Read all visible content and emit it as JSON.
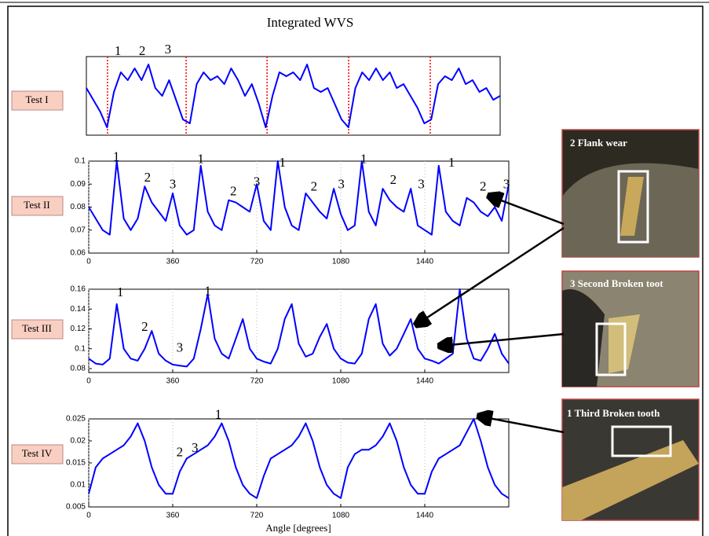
{
  "title": "Integrated WVS",
  "xlabel": "Angle [degrees]",
  "photos": [
    {
      "caption": "2 Flank wear"
    },
    {
      "caption": "3 Second Broken toot"
    },
    {
      "caption": "1 Third Broken tooth"
    }
  ],
  "chart_data": [
    {
      "type": "line",
      "label": "Test I",
      "color": "#0000ff",
      "xlim": [
        0,
        1800
      ],
      "ylim": [
        0,
        1
      ],
      "vlines": [
        92,
        434,
        786,
        1141,
        1496
      ],
      "vline_color": "#ff0000",
      "x": [
        0,
        30,
        60,
        90,
        120,
        150,
        180,
        210,
        240,
        270,
        300,
        330,
        360,
        390,
        420,
        450,
        480,
        510,
        540,
        570,
        600,
        630,
        660,
        690,
        720,
        750,
        780,
        810,
        840,
        870,
        900,
        930,
        960,
        990,
        1020,
        1050,
        1080,
        1110,
        1140,
        1170,
        1200,
        1230,
        1260,
        1290,
        1320,
        1350,
        1380,
        1410,
        1440,
        1470,
        1500,
        1530,
        1560,
        1590,
        1620,
        1650,
        1680,
        1710,
        1740,
        1770,
        1800
      ],
      "values": [
        0.6,
        0.45,
        0.3,
        0.1,
        0.55,
        0.8,
        0.7,
        0.85,
        0.7,
        0.9,
        0.6,
        0.5,
        0.7,
        0.45,
        0.2,
        0.15,
        0.65,
        0.8,
        0.7,
        0.75,
        0.65,
        0.85,
        0.7,
        0.5,
        0.65,
        0.4,
        0.1,
        0.5,
        0.8,
        0.75,
        0.8,
        0.7,
        0.9,
        0.6,
        0.55,
        0.6,
        0.4,
        0.2,
        0.1,
        0.6,
        0.8,
        0.7,
        0.85,
        0.7,
        0.8,
        0.6,
        0.65,
        0.5,
        0.35,
        0.15,
        0.2,
        0.65,
        0.75,
        0.7,
        0.85,
        0.65,
        0.7,
        0.55,
        0.6,
        0.45,
        0.5
      ],
      "annotations": [
        {
          "text": "1",
          "x": 137,
          "y": 1.06
        },
        {
          "text": "2",
          "x": 243,
          "y": 1.06
        },
        {
          "text": "3",
          "x": 355,
          "y": 1.08
        }
      ]
    },
    {
      "type": "line",
      "label": "Test II",
      "color": "#0000ff",
      "xlim": [
        0,
        1800
      ],
      "ylim": [
        0.06,
        0.1
      ],
      "xticks": [
        0,
        360,
        720,
        1080,
        1440
      ],
      "yticks": [
        0.06,
        0.07,
        0.08,
        0.09,
        0.1
      ],
      "grid": true,
      "x": [
        0,
        30,
        60,
        90,
        120,
        150,
        180,
        210,
        240,
        270,
        300,
        330,
        360,
        390,
        420,
        450,
        480,
        510,
        540,
        570,
        600,
        630,
        660,
        690,
        720,
        750,
        780,
        810,
        840,
        870,
        900,
        930,
        960,
        990,
        1020,
        1050,
        1080,
        1110,
        1140,
        1170,
        1200,
        1230,
        1260,
        1290,
        1320,
        1350,
        1380,
        1410,
        1440,
        1470,
        1500,
        1530,
        1560,
        1590,
        1620,
        1650,
        1680,
        1710,
        1740,
        1770,
        1800
      ],
      "values": [
        0.08,
        0.075,
        0.07,
        0.068,
        0.1,
        0.075,
        0.07,
        0.075,
        0.089,
        0.082,
        0.078,
        0.074,
        0.086,
        0.072,
        0.068,
        0.07,
        0.098,
        0.078,
        0.072,
        0.07,
        0.083,
        0.082,
        0.08,
        0.078,
        0.09,
        0.074,
        0.07,
        0.1,
        0.08,
        0.072,
        0.07,
        0.086,
        0.082,
        0.078,
        0.075,
        0.088,
        0.077,
        0.07,
        0.072,
        0.1,
        0.078,
        0.072,
        0.088,
        0.083,
        0.08,
        0.078,
        0.088,
        0.072,
        0.07,
        0.068,
        0.098,
        0.078,
        0.074,
        0.072,
        0.084,
        0.082,
        0.078,
        0.076,
        0.08,
        0.074,
        0.09
      ],
      "annotations": [
        {
          "text": "1",
          "x": 118,
          "y": 0.1015
        },
        {
          "text": "2",
          "x": 252,
          "y": 0.0925
        },
        {
          "text": "3",
          "x": 360,
          "y": 0.0895
        },
        {
          "text": "1",
          "x": 480,
          "y": 0.1005
        },
        {
          "text": "2",
          "x": 620,
          "y": 0.0865
        },
        {
          "text": "3",
          "x": 720,
          "y": 0.0905
        },
        {
          "text": "1",
          "x": 830,
          "y": 0.099
        },
        {
          "text": "2",
          "x": 965,
          "y": 0.0885
        },
        {
          "text": "3",
          "x": 1082,
          "y": 0.0895
        },
        {
          "text": "1",
          "x": 1178,
          "y": 0.1005
        },
        {
          "text": "2",
          "x": 1305,
          "y": 0.0915
        },
        {
          "text": "3",
          "x": 1425,
          "y": 0.0895
        },
        {
          "text": "1",
          "x": 1555,
          "y": 0.099
        },
        {
          "text": "2",
          "x": 1690,
          "y": 0.0885
        },
        {
          "text": "3",
          "x": 1790,
          "y": 0.0895
        }
      ]
    },
    {
      "type": "line",
      "label": "Test III",
      "color": "#0000ff",
      "xlim": [
        0,
        1800
      ],
      "ylim": [
        0.076,
        0.16
      ],
      "xticks": [
        0,
        360,
        720,
        1080,
        1440
      ],
      "yticks": [
        0.08,
        0.1,
        0.12,
        0.14,
        0.16
      ],
      "grid": true,
      "x": [
        0,
        30,
        60,
        90,
        120,
        150,
        180,
        210,
        240,
        270,
        300,
        330,
        360,
        390,
        420,
        450,
        480,
        510,
        540,
        570,
        600,
        630,
        660,
        690,
        720,
        750,
        780,
        810,
        840,
        870,
        900,
        930,
        960,
        990,
        1020,
        1050,
        1080,
        1110,
        1140,
        1170,
        1200,
        1230,
        1260,
        1290,
        1320,
        1350,
        1380,
        1410,
        1440,
        1470,
        1500,
        1530,
        1560,
        1590,
        1620,
        1650,
        1680,
        1710,
        1740,
        1770,
        1800
      ],
      "values": [
        0.09,
        0.085,
        0.084,
        0.09,
        0.145,
        0.1,
        0.09,
        0.088,
        0.1,
        0.118,
        0.095,
        0.088,
        0.084,
        0.083,
        0.082,
        0.09,
        0.12,
        0.155,
        0.11,
        0.095,
        0.09,
        0.11,
        0.13,
        0.1,
        0.09,
        0.087,
        0.085,
        0.1,
        0.13,
        0.145,
        0.105,
        0.092,
        0.095,
        0.112,
        0.125,
        0.1,
        0.09,
        0.086,
        0.085,
        0.095,
        0.13,
        0.145,
        0.105,
        0.093,
        0.1,
        0.115,
        0.13,
        0.1,
        0.09,
        0.088,
        0.085,
        0.09,
        0.095,
        0.16,
        0.11,
        0.09,
        0.088,
        0.1,
        0.115,
        0.095,
        0.085
      ],
      "annotations": [
        {
          "text": "1",
          "x": 135,
          "y": 0.156
        },
        {
          "text": "2",
          "x": 240,
          "y": 0.121
        },
        {
          "text": "3",
          "x": 390,
          "y": 0.1
        },
        {
          "text": "1",
          "x": 510,
          "y": 0.157
        }
      ]
    },
    {
      "type": "line",
      "label": "Test IV",
      "color": "#0000ff",
      "xlim": [
        0,
        1800
      ],
      "ylim": [
        0.005,
        0.025
      ],
      "xticks": [
        0,
        360,
        720,
        1080,
        1440
      ],
      "yticks": [
        0.005,
        0.01,
        0.015,
        0.02,
        0.025
      ],
      "grid": true,
      "x": [
        0,
        30,
        60,
        90,
        120,
        150,
        180,
        210,
        240,
        270,
        300,
        330,
        360,
        390,
        420,
        450,
        480,
        510,
        540,
        570,
        600,
        630,
        660,
        690,
        720,
        750,
        780,
        810,
        840,
        870,
        900,
        930,
        960,
        990,
        1020,
        1050,
        1080,
        1110,
        1140,
        1170,
        1200,
        1230,
        1260,
        1290,
        1320,
        1350,
        1380,
        1410,
        1440,
        1470,
        1500,
        1530,
        1560,
        1590,
        1620,
        1650,
        1680,
        1710,
        1740,
        1770,
        1800
      ],
      "values": [
        0.008,
        0.014,
        0.016,
        0.017,
        0.018,
        0.019,
        0.021,
        0.024,
        0.02,
        0.014,
        0.01,
        0.008,
        0.008,
        0.013,
        0.016,
        0.017,
        0.018,
        0.019,
        0.021,
        0.024,
        0.02,
        0.014,
        0.01,
        0.008,
        0.007,
        0.012,
        0.016,
        0.017,
        0.018,
        0.019,
        0.021,
        0.024,
        0.02,
        0.014,
        0.01,
        0.008,
        0.007,
        0.014,
        0.017,
        0.018,
        0.018,
        0.019,
        0.021,
        0.024,
        0.02,
        0.014,
        0.01,
        0.008,
        0.008,
        0.013,
        0.016,
        0.017,
        0.018,
        0.019,
        0.022,
        0.025,
        0.02,
        0.014,
        0.01,
        0.008,
        0.007
      ],
      "annotations": [
        {
          "text": "2",
          "x": 390,
          "y": 0.0172
        },
        {
          "text": "3",
          "x": 455,
          "y": 0.0182
        },
        {
          "text": "1",
          "x": 555,
          "y": 0.0258
        }
      ]
    }
  ]
}
